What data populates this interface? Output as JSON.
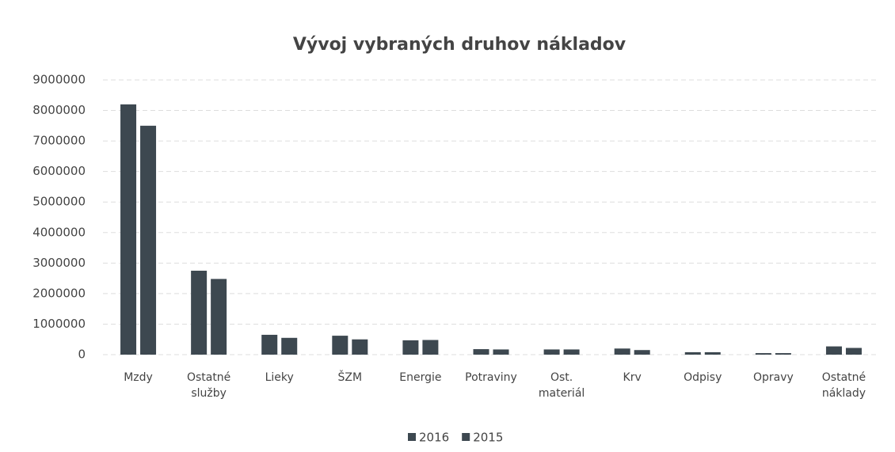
{
  "chart_data": {
    "type": "bar",
    "title": "Vývoj vybraných druhov nákladov",
    "categories": [
      "Mzdy",
      "Ostatné služby",
      "Lieky",
      "ŠZM",
      "Energie",
      "Potraviny",
      "Ost. materiál",
      "Krv",
      "Odpisy",
      "Opravy",
      "Ostatné náklady"
    ],
    "series": [
      {
        "name": "2016",
        "color": "#3d4850",
        "values": [
          8200000,
          2750000,
          650000,
          620000,
          470000,
          180000,
          170000,
          200000,
          80000,
          50000,
          270000
        ]
      },
      {
        "name": "2015",
        "color": "#3d4850",
        "values": [
          7500000,
          2480000,
          550000,
          500000,
          480000,
          170000,
          170000,
          150000,
          80000,
          50000,
          220000
        ]
      }
    ],
    "ylim": [
      0,
      9000000
    ],
    "yticks": [
      0,
      1000000,
      2000000,
      3000000,
      4000000,
      5000000,
      6000000,
      7000000,
      8000000,
      9000000
    ],
    "grid": true,
    "legend": "bottom"
  }
}
